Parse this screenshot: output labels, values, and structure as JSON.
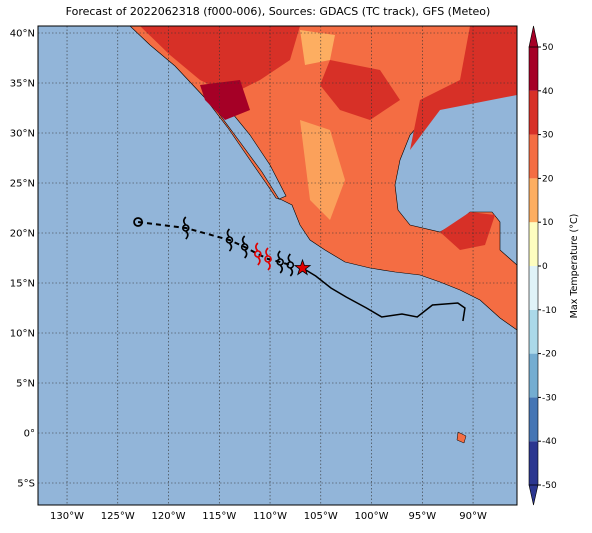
{
  "chart_data": {
    "type": "map",
    "title": "Forecast of 2022062318 (f000-006), Sources: GDACS (TC track), GFS (Meteo)",
    "xlim": [
      -132.86,
      -85.67
    ],
    "ylim": [
      -7.2,
      40.7
    ],
    "xticks": [
      {
        "value": -130,
        "label": "130°W"
      },
      {
        "value": -125,
        "label": "125°W"
      },
      {
        "value": -120,
        "label": "120°W"
      },
      {
        "value": -115,
        "label": "115°W"
      },
      {
        "value": -110,
        "label": "110°W"
      },
      {
        "value": -105,
        "label": "105°W"
      },
      {
        "value": -100,
        "label": "100°W"
      },
      {
        "value": -95,
        "label": "95°W"
      },
      {
        "value": -90,
        "label": "90°W"
      }
    ],
    "yticks": [
      {
        "value": -5,
        "label": "5°S"
      },
      {
        "value": 0,
        "label": "0°"
      },
      {
        "value": 5,
        "label": "5°N"
      },
      {
        "value": 10,
        "label": "10°N"
      },
      {
        "value": 15,
        "label": "15°N"
      },
      {
        "value": 20,
        "label": "20°N"
      },
      {
        "value": 25,
        "label": "25°N"
      },
      {
        "value": 30,
        "label": "30°N"
      },
      {
        "value": 35,
        "label": "35°N"
      },
      {
        "value": 40,
        "label": "40°N"
      }
    ],
    "grid": true,
    "colorbar": {
      "label": "Max Temperature (°C)",
      "lim": [
        -50,
        50
      ],
      "ticks": [
        -50,
        -40,
        -30,
        -20,
        -10,
        0,
        10,
        20,
        30,
        40,
        50
      ],
      "colors": [
        "#2b3690",
        "#4575b4",
        "#74add1",
        "#abd9e9",
        "#e0f3f8",
        "#fefec0",
        "#fdae61",
        "#f46d43",
        "#d73027",
        "#a50026"
      ]
    },
    "forecast_track": {
      "x": [
        -123.0,
        -118.3,
        -114.0,
        -112.5,
        -111.2,
        -110.2,
        -109.0,
        -108.0
      ],
      "y": [
        21.1,
        20.5,
        19.3,
        18.6,
        17.9,
        17.4,
        17.1,
        16.8
      ],
      "markers": [
        "circle",
        "hurricane",
        "hurricane",
        "hurricane",
        "hurricane",
        "hurricane",
        "hurricane",
        "hurricane"
      ],
      "colors": [
        "#000000",
        "#000000",
        "#000000",
        "#000000",
        "#e00000",
        "#e00000",
        "#000000",
        "#000000"
      ]
    },
    "past_track": {
      "x": [
        -106.8,
        -105.5,
        -104.0,
        -102.5,
        -100.5,
        -99.0,
        -97.0,
        -95.5,
        -94.0,
        -91.5,
        -90.8,
        -91.0
      ],
      "y": [
        16.5,
        15.7,
        14.5,
        13.6,
        12.5,
        11.6,
        11.9,
        11.6,
        12.8,
        13.0,
        12.5,
        11.2
      ],
      "color": "#000000"
    },
    "current_position": {
      "x": -106.8,
      "y": 16.5,
      "color": "#e00000"
    }
  }
}
